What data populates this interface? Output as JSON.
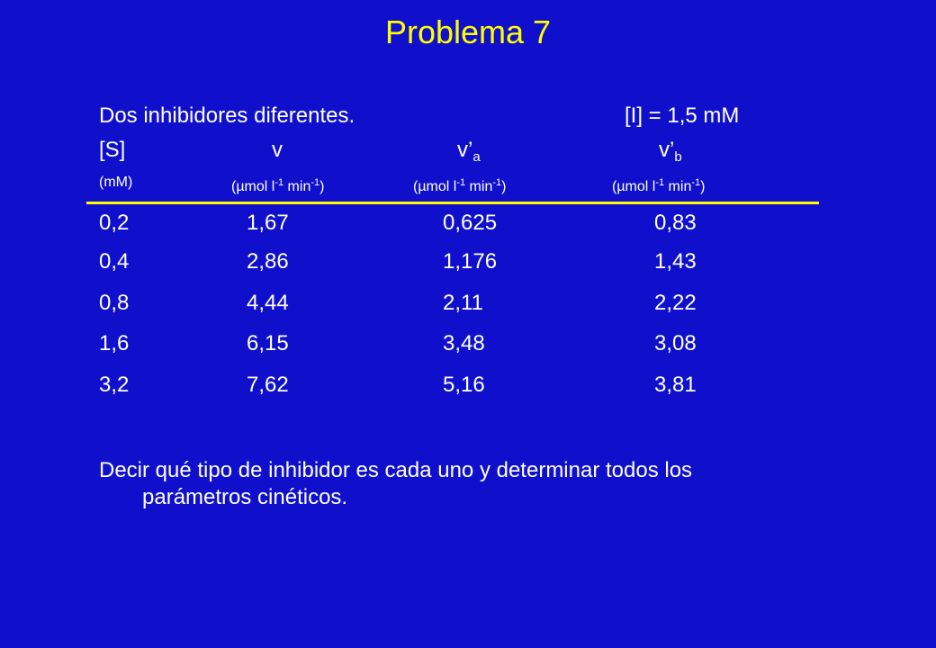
{
  "title": "Problema 7",
  "intro": "Dos inhibidores diferentes.",
  "concentration": "[I] = 1,5 mM",
  "headers": {
    "s": "[S]",
    "v": "v",
    "va_base": "v’",
    "va_sub": "a",
    "vb_base": "v’",
    "vb_sub": "b"
  },
  "units": {
    "s": "(mM)",
    "rate_prefix": "(µmol l",
    "rate_exp1": "-1",
    "rate_mid": " min",
    "rate_exp2": "-1",
    "rate_suffix": ")"
  },
  "table": {
    "rows": [
      [
        "0,2",
        "1,67",
        "0,625",
        "0,83"
      ],
      [
        "0,4",
        "2,86",
        "1,176",
        "1,43"
      ],
      [
        "0,8",
        "4,44",
        "2,11",
        "2,22"
      ],
      [
        "1,6",
        "6,15",
        "3,48",
        "3,08"
      ],
      [
        "3,2",
        "7,62",
        "5,16",
        "3,81"
      ]
    ]
  },
  "question": {
    "line1": "Decir qué tipo de inhibidor es cada uno y determinar todos los",
    "line2": "parámetros cinéticos."
  },
  "colors": {
    "background": "#1010cc",
    "title": "#ffff00",
    "rule": "#ffff00",
    "text": "#ffffff"
  }
}
